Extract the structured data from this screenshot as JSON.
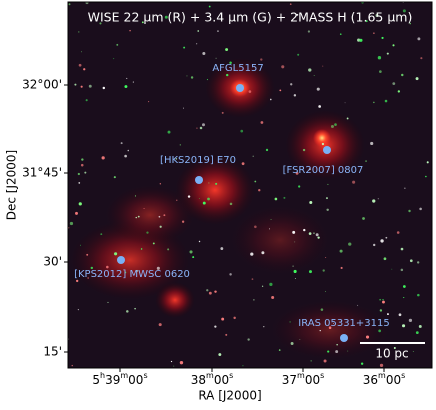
{
  "figure": {
    "title": "WISE 22 μm (R) + 3.4 μm (G) + 2MASS H (1.65 μm)",
    "xlabel": "RA [J2000]",
    "ylabel": "Dec [J2000]",
    "xticks": [
      {
        "parts": [
          "5",
          "h",
          "39",
          "m",
          "00",
          "s"
        ]
      },
      {
        "parts": [
          "38",
          "m",
          "00",
          "s"
        ]
      },
      {
        "parts": [
          "37",
          "m",
          "00",
          "s"
        ]
      },
      {
        "parts": [
          "36",
          "m",
          "00",
          "s"
        ]
      }
    ],
    "yticks": [
      "32°00'",
      "31°45'",
      "30'",
      "15'"
    ],
    "annotations": [
      "AFGL5157",
      "[HKS2019] E70",
      "[FSR2007] 0807",
      "[KPS2012] MWSC 0620",
      "IRAS 05331+3115"
    ],
    "scalebar": "10 pc"
  }
}
